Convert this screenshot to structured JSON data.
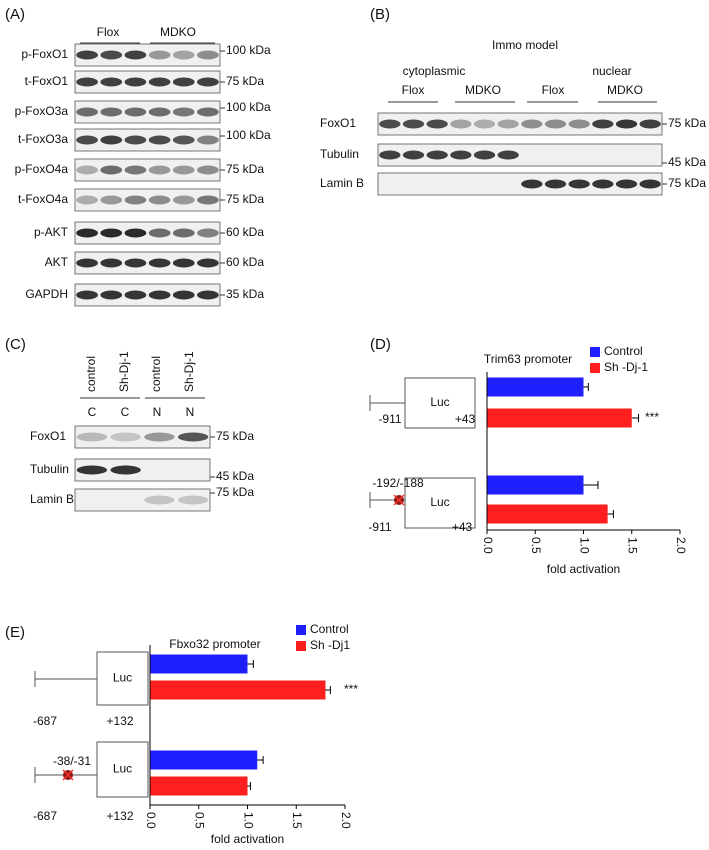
{
  "panels": {
    "A": {
      "label": "(A)",
      "groups": [
        "Flox",
        "MDKO"
      ],
      "rows": [
        {
          "name": "p-FoxO1",
          "size": "100 kDa"
        },
        {
          "name": "t-FoxO1",
          "size": "75 kDa"
        },
        {
          "name": "p-FoxO3a",
          "size": "100 kDa"
        },
        {
          "name": "t-FoxO3a",
          "size": "100 kDa"
        },
        {
          "name": "p-FoxO4a",
          "size": "75 kDa"
        },
        {
          "name": "t-FoxO4a",
          "size": "75 kDa"
        },
        {
          "name": "p-AKT",
          "size": "60 kDa"
        },
        {
          "name": "AKT",
          "size": "60 kDa"
        },
        {
          "name": "GAPDH",
          "size": "35 kDa"
        }
      ]
    },
    "B": {
      "label": "(B)",
      "title": "Immo model",
      "fractions": [
        "cytoplasmic",
        "nuclear"
      ],
      "groups": [
        "Flox",
        "MDKO",
        "Flox",
        "MDKO"
      ],
      "rows": [
        {
          "name": "FoxO1",
          "size": "75 kDa"
        },
        {
          "name": "Tubulin",
          "size": "45 kDa"
        },
        {
          "name": "Lamin B",
          "size": "75 kDa"
        }
      ]
    },
    "C": {
      "label": "(C)",
      "lanes": [
        "control",
        "Sh-Dj-1",
        "control",
        "Sh-Dj-1"
      ],
      "fractions": [
        "C",
        "C",
        "N",
        "N"
      ],
      "rows": [
        {
          "name": "FoxO1",
          "size": "75 kDa"
        },
        {
          "name": "Tubulin",
          "size": "45 kDa"
        },
        {
          "name": "Lamin B",
          "size": "75 kDa"
        }
      ]
    },
    "D": {
      "label": "(D)",
      "constructs": [
        {
          "box": "Luc",
          "start": "-911",
          "end": "+43"
        },
        {
          "box": "Luc",
          "mutation": "-192/-188",
          "start": "-911",
          "end": "+43"
        }
      ],
      "chart": {
        "type": "bar",
        "title": "Trim63  promoter",
        "xlabel": "fold activation",
        "series": [
          {
            "name": "Control",
            "color": "#1f1fff",
            "values": [
              1.0,
              1.0
            ],
            "errors": [
              0.05,
              0.15
            ]
          },
          {
            "name": "Sh -Dj-1",
            "color": "#ff1f1f",
            "values": [
              1.5,
              1.25
            ],
            "errors": [
              0.07,
              0.06
            ]
          }
        ],
        "annotations": [
          "***"
        ],
        "xlim": [
          0,
          2
        ],
        "xticks": [
          {
            "value": 0,
            "label": "0.0"
          },
          0.5,
          {
            "value": 1,
            "label": "1.0"
          },
          1.5,
          {
            "value": 2,
            "label": "2.0"
          }
        ]
      }
    },
    "E": {
      "label": "(E)",
      "constructs": [
        {
          "box": "Luc",
          "start": "-687",
          "end": "+132"
        },
        {
          "box": "Luc",
          "mutation": "-38/-31",
          "start": "-687",
          "end": "+132"
        }
      ],
      "chart": {
        "type": "bar",
        "title": "Fbxo32  promoter",
        "xlabel": "fold activation",
        "series": [
          {
            "name": "Control",
            "color": "#1f1fff",
            "values": [
              1.0,
              1.1
            ],
            "errors": [
              0.06,
              0.06
            ]
          },
          {
            "name": "Sh -Dj1",
            "color": "#ff1f1f",
            "values": [
              1.8,
              1.0
            ],
            "errors": [
              0.05,
              0.03
            ]
          }
        ],
        "annotations": [
          "***"
        ],
        "xlim": [
          0,
          2
        ],
        "xticks": [
          {
            "value": 0,
            "label": "0.0"
          },
          0.5,
          {
            "value": 1,
            "label": "1.0"
          },
          1.5,
          {
            "value": 2,
            "label": "2.0"
          }
        ]
      }
    }
  }
}
